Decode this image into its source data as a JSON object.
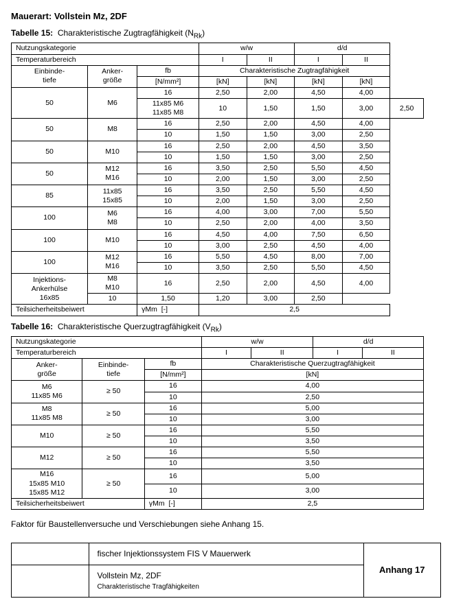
{
  "title": "Mauerart: Vollstein Mz, 2DF",
  "table15": {
    "caption_label": "Tabelle 15:",
    "caption_text": "Charakteristische Zugtragfähigkeit (N",
    "caption_sub": "Rk",
    "caption_close": ")",
    "headers": {
      "nutzung": "Nutzungskategorie",
      "ww": "w/w",
      "dd": "d/d",
      "temp": "Temperaturbereich",
      "I": "I",
      "II": "II",
      "einbinde": "Einbinde-\ntiefe",
      "anker": "Anker-\ngröße",
      "fb": "fb",
      "fb_unit": "[N/mm²]",
      "char": "Charakteristische Zugtragfähigkeit",
      "kn": "[kN]"
    },
    "rows": [
      [
        "50",
        "M6",
        "16",
        "2,50",
        "2,00",
        "4,50",
        "4,00"
      ],
      [
        "",
        "",
        "10",
        "1,50",
        "1,50",
        "3,00",
        "2,50"
      ],
      [
        "50",
        "M8",
        "16",
        "2,50",
        "2,00",
        "4,50",
        "4,00"
      ],
      [
        "",
        "",
        "10",
        "1,50",
        "1,50",
        "3,00",
        "2,50"
      ],
      [
        "50",
        "M10",
        "16",
        "2,50",
        "2,00",
        "4,50",
        "3,50"
      ],
      [
        "",
        "",
        "10",
        "1,50",
        "1,50",
        "3,00",
        "2,50"
      ],
      [
        "50",
        "M12\nM16",
        "16",
        "3,50",
        "2,50",
        "5,50",
        "4,50"
      ],
      [
        "",
        "",
        "10",
        "2,00",
        "1,50",
        "3,00",
        "2,50"
      ],
      [
        "85",
        "11x85\n15x85",
        "16",
        "3,50",
        "2,50",
        "5,50",
        "4,50"
      ],
      [
        "",
        "",
        "10",
        "2,00",
        "1,50",
        "3,00",
        "2,50"
      ],
      [
        "100",
        "M6\nM8",
        "16",
        "4,00",
        "3,00",
        "7,00",
        "5,50"
      ],
      [
        "",
        "",
        "10",
        "2,50",
        "2,00",
        "4,00",
        "3,50"
      ],
      [
        "100",
        "M10",
        "16",
        "4,50",
        "4,00",
        "7,50",
        "6,50"
      ],
      [
        "",
        "",
        "10",
        "3,00",
        "2,50",
        "4,50",
        "4,00"
      ],
      [
        "100",
        "M12\nM16",
        "16",
        "5,50",
        "4,50",
        "8,00",
        "7,00"
      ],
      [
        "",
        "",
        "10",
        "3,50",
        "2,50",
        "5,50",
        "4,50"
      ],
      [
        "Injektions-\nAnkerhülse\n16x85",
        "M8\nM10",
        "16",
        "2,50",
        "2,00",
        "4,50",
        "4,00"
      ],
      [
        "",
        "11x85 M6\n11x85 M8",
        "10",
        "1,50",
        "1,20",
        "3,00",
        "2,50"
      ]
    ],
    "safety_label": "Teilsicherheitsbeiwert",
    "gamma": "γMm",
    "dash": "[-]",
    "safety_val": "2,5"
  },
  "table16": {
    "caption_label": "Tabelle 16:",
    "caption_text": "Charakteristische Querzugtragfähigkeit (V",
    "caption_sub": "Rk",
    "caption_close": ")",
    "headers": {
      "nutzung": "Nutzungskategorie",
      "ww": "w/w",
      "dd": "d/d",
      "temp": "Temperaturbereich",
      "I": "I",
      "II": "II",
      "anker": "Anker-\ngröße",
      "einbinde": "Einbinde-\ntiefe",
      "fb": "fb",
      "fb_unit": "[N/mm²]",
      "char": "Charakteristische Querzugtragfähigkeit",
      "kn": "[kN]"
    },
    "rows": [
      [
        "M6\n11x85 M6",
        "≥ 50",
        "16",
        "4,00"
      ],
      [
        "",
        "",
        "10",
        "2,50"
      ],
      [
        "M8\n11x85 M8",
        "≥ 50",
        "16",
        "5,00"
      ],
      [
        "",
        "",
        "10",
        "3,00"
      ],
      [
        "M10",
        "≥ 50",
        "16",
        "5,50"
      ],
      [
        "",
        "",
        "10",
        "3,50"
      ],
      [
        "M12",
        "≥ 50",
        "16",
        "5,50"
      ],
      [
        "",
        "",
        "10",
        "3,50"
      ],
      [
        "M16\n15x85 M10\n15x85 M12",
        "≥ 50",
        "16",
        "5,00"
      ],
      [
        "",
        "",
        "10",
        "3,00"
      ]
    ],
    "safety_label": "Teilsicherheitsbeiwert",
    "gamma": "γMm",
    "dash": "[-]",
    "safety_val": "2,5"
  },
  "note": "Faktor für Baustellenversuche und Verschiebungen siehe Anhang 15.",
  "footer": {
    "line1": "fischer Injektionssystem FIS V Mauerwerk",
    "line2a": "Vollstein Mz, 2DF",
    "line2b": "Charakteristische Tragfähigkeiten",
    "anhang": "Anhang 17"
  }
}
